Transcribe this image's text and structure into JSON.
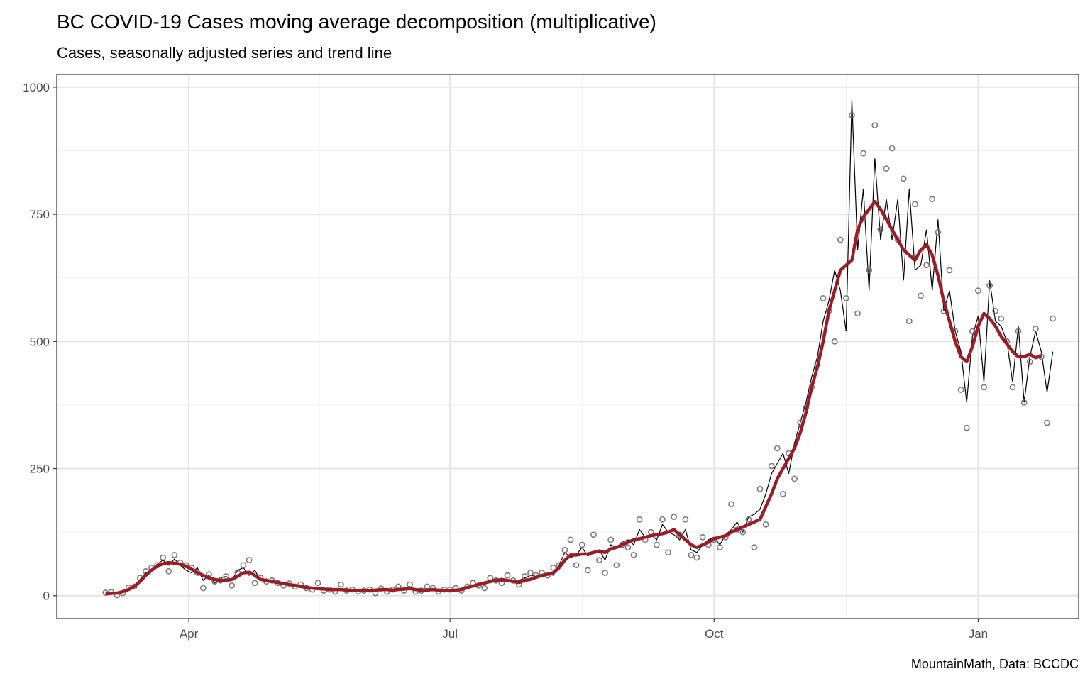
{
  "chart_data": {
    "type": "line",
    "title": "BC COVID-19 Cases moving average decomposition (multiplicative)",
    "subtitle": "Cases, seasonally adjusted series and trend line",
    "caption": "MountainMath, Data: BCCDC",
    "xlabel": "",
    "ylabel": "",
    "ylim": [
      -45,
      1025
    ],
    "xlim": [
      "2020-02-15",
      "2021-02-05"
    ],
    "y_ticks": [
      0,
      250,
      500,
      750,
      1000
    ],
    "y_tick_labels": [
      "0",
      "250",
      "500",
      "750",
      "1000"
    ],
    "x_ticks": [
      "2020-04-01",
      "2020-07-01",
      "2020-10-01",
      "2021-01-01"
    ],
    "x_tick_labels": [
      "Apr",
      "Jul",
      "Oct",
      "Jan"
    ],
    "grid": true,
    "x_start": "2020-03-03",
    "x_step_days": 2,
    "colors": {
      "observed": "#6e6e6e",
      "adjusted": "#000000",
      "trend": "#9b1c24"
    },
    "series": [
      {
        "name": "Cases (observed)",
        "kind": "points",
        "values": [
          6,
          7,
          1,
          5,
          16,
          18,
          35,
          48,
          55,
          60,
          75,
          48,
          80,
          65,
          60,
          55,
          45,
          15,
          42,
          28,
          30,
          38,
          20,
          45,
          60,
          70,
          25,
          35,
          28,
          30,
          25,
          20,
          24,
          18,
          22,
          15,
          12,
          25,
          10,
          12,
          8,
          22,
          10,
          12,
          8,
          10,
          12,
          5,
          14,
          8,
          12,
          18,
          10,
          22,
          8,
          10,
          18,
          15,
          8,
          12,
          12,
          15,
          10,
          18,
          25,
          20,
          15,
          35,
          30,
          25,
          40,
          30,
          22,
          38,
          45,
          40,
          45,
          40,
          55,
          60,
          90,
          110,
          60,
          100,
          50,
          120,
          70,
          45,
          110,
          60,
          100,
          95,
          80,
          150,
          110,
          125,
          100,
          150,
          85,
          155,
          120,
          150,
          80,
          75,
          115,
          100,
          110,
          95,
          115,
          180,
          130,
          125,
          150,
          95,
          210,
          140,
          255,
          290,
          200,
          280,
          230,
          340,
          370,
          410,
          455,
          585,
          560,
          500,
          700,
          585,
          945,
          555,
          870,
          640,
          925,
          720,
          840,
          880,
          700,
          820,
          540,
          770,
          590,
          650,
          780,
          715,
          560,
          640,
          520,
          405,
          330,
          520,
          600,
          410,
          610,
          560,
          545,
          500,
          410,
          520,
          380,
          460,
          525,
          470,
          340,
          545
        ]
      },
      {
        "name": "Seasonally adjusted",
        "kind": "line",
        "values": [
          5,
          6,
          3,
          10,
          14,
          20,
          32,
          45,
          48,
          62,
          70,
          60,
          72,
          60,
          50,
          45,
          55,
          30,
          40,
          25,
          35,
          38,
          30,
          50,
          55,
          40,
          50,
          30,
          28,
          30,
          25,
          22,
          20,
          18,
          20,
          15,
          14,
          15,
          12,
          10,
          12,
          13,
          10,
          10,
          8,
          8,
          12,
          10,
          14,
          10,
          12,
          15,
          10,
          18,
          12,
          10,
          14,
          12,
          10,
          12,
          12,
          10,
          15,
          18,
          20,
          25,
          22,
          30,
          35,
          28,
          32,
          25,
          30,
          35,
          40,
          38,
          42,
          45,
          40,
          60,
          85,
          75,
          80,
          95,
          78,
          85,
          90,
          70,
          100,
          95,
          105,
          110,
          100,
          130,
          115,
          120,
          110,
          140,
          125,
          120,
          110,
          130,
          90,
          85,
          100,
          110,
          115,
          100,
          120,
          130,
          145,
          125,
          155,
          160,
          170,
          200,
          240,
          260,
          280,
          240,
          300,
          340,
          380,
          430,
          470,
          540,
          580,
          640,
          600,
          520,
          975,
          680,
          800,
          600,
          860,
          700,
          780,
          700,
          780,
          620,
          800,
          640,
          650,
          720,
          600,
          740,
          560,
          600,
          520,
          480,
          380,
          510,
          550,
          420,
          620,
          540,
          530,
          500,
          420,
          530,
          380,
          470,
          520,
          480,
          400,
          480
        ]
      },
      {
        "name": "Trend",
        "kind": "line",
        "values": [
          3,
          5,
          5,
          8,
          12,
          18,
          28,
          40,
          50,
          58,
          63,
          65,
          64,
          62,
          58,
          52,
          45,
          40,
          35,
          32,
          30,
          30,
          32,
          38,
          45,
          46,
          40,
          32,
          30,
          28,
          26,
          24,
          22,
          20,
          18,
          16,
          15,
          14,
          13,
          12,
          12,
          12,
          11,
          10,
          10,
          10,
          10,
          11,
          12,
          12,
          11,
          12,
          13,
          14,
          12,
          11,
          11,
          12,
          11,
          10,
          10,
          11,
          12,
          16,
          19,
          22,
          25,
          28,
          30,
          32,
          30,
          28,
          26,
          30,
          32,
          36,
          40,
          42,
          45,
          55,
          70,
          80,
          80,
          82,
          82,
          85,
          88,
          85,
          92,
          95,
          100,
          105,
          110,
          112,
          115,
          118,
          120,
          122,
          125,
          130,
          120,
          110,
          100,
          95,
          100,
          105,
          112,
          115,
          118,
          125,
          130,
          135,
          140,
          145,
          150,
          175,
          200,
          230,
          250,
          270,
          290,
          320,
          360,
          410,
          450,
          500,
          560,
          600,
          640,
          650,
          660,
          720,
          745,
          760,
          775,
          760,
          740,
          720,
          700,
          680,
          670,
          660,
          680,
          690,
          670,
          630,
          580,
          540,
          500,
          470,
          460,
          490,
          530,
          555,
          545,
          530,
          510,
          495,
          480,
          470,
          470,
          475,
          468,
          472
        ]
      }
    ]
  }
}
